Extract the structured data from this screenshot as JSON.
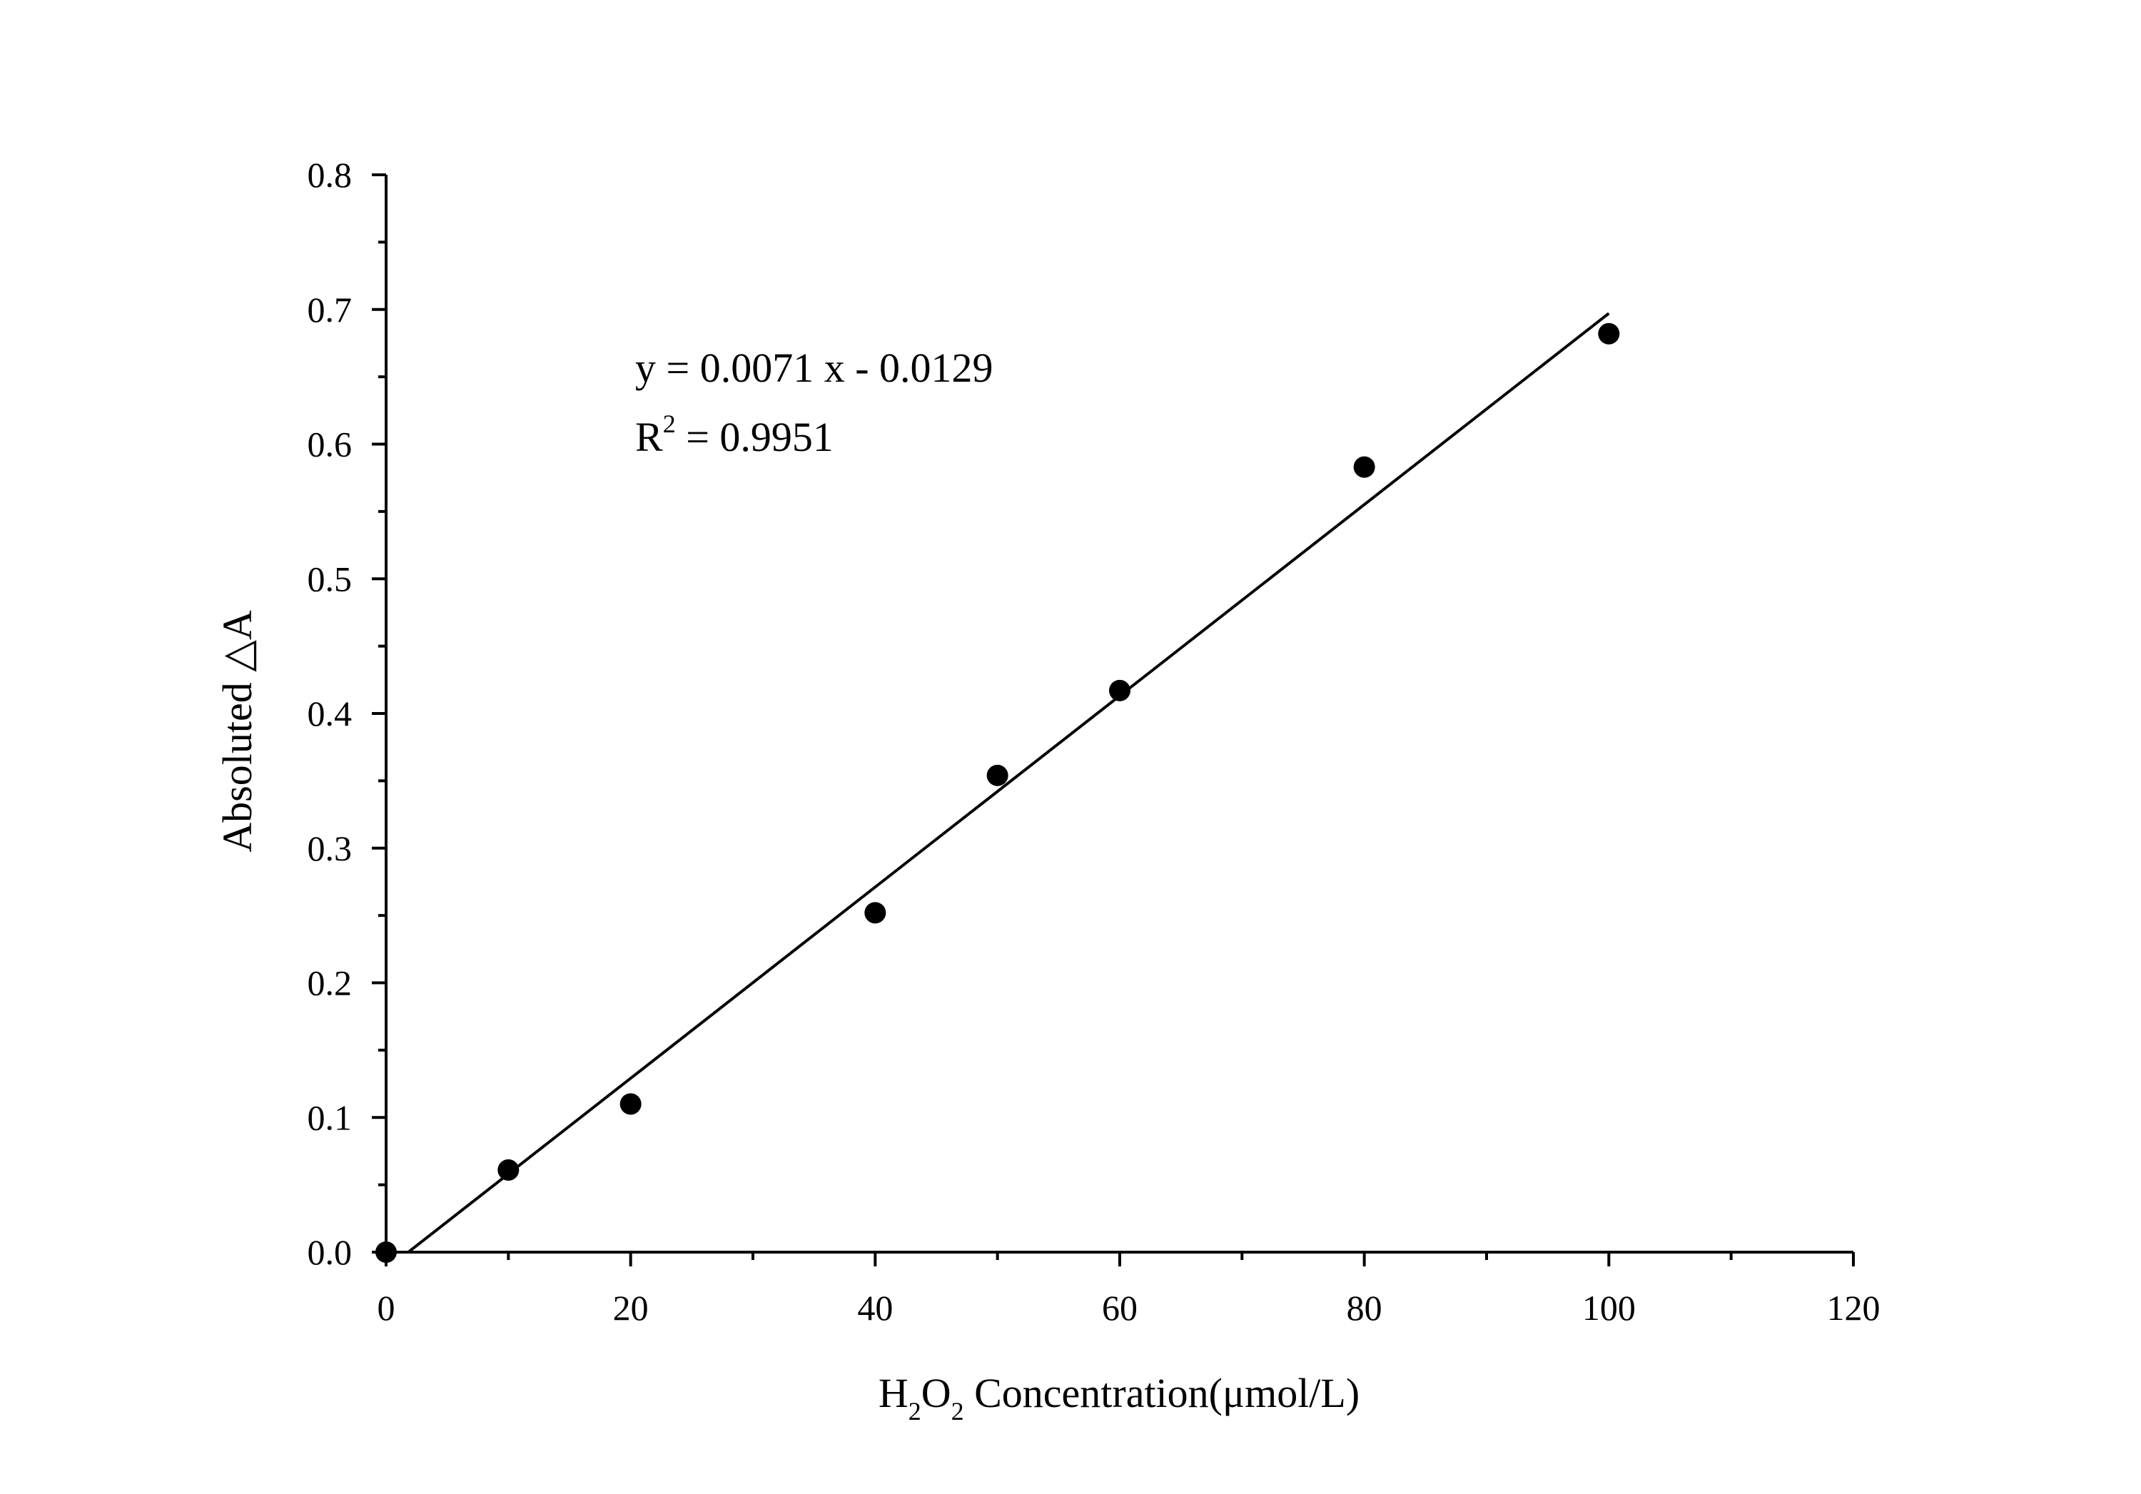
{
  "chart_data": {
    "type": "scatter",
    "xlabel": {
      "prefix": "H",
      "sub1": "2",
      "middle": "O",
      "sub2": "2",
      "suffix": " Concentration(μmol/L)"
    },
    "ylabel": "Absoluted △A",
    "xlim": [
      0,
      120
    ],
    "ylim": [
      0,
      0.8
    ],
    "xticks": [
      0,
      20,
      40,
      60,
      80,
      100,
      120
    ],
    "xtick_labels": [
      "0",
      "20",
      "40",
      "60",
      "80",
      "100",
      "120"
    ],
    "yticks": [
      0,
      0.1,
      0.2,
      0.3,
      0.4,
      0.5,
      0.6,
      0.7,
      0.8
    ],
    "ytick_labels": [
      "0.0",
      "0.1",
      "0.2",
      "0.3",
      "0.4",
      "0.5",
      "0.6",
      "0.7",
      "0.8"
    ],
    "grid": false,
    "legend": "none",
    "points": {
      "x": [
        0,
        10,
        20,
        40,
        50,
        60,
        80,
        100
      ],
      "y": [
        0.0,
        0.061,
        0.11,
        0.252,
        0.354,
        0.417,
        0.583,
        0.682
      ]
    },
    "fit": {
      "slope": 0.0071,
      "intercept": -0.0129,
      "x_range": [
        1.82,
        100
      ]
    },
    "annotations": {
      "equation": "y = 0.0071 x - 0.0129",
      "r2_base": "R",
      "r2_sup": "2",
      "r2_value": " = 0.9951"
    },
    "colors": {
      "marker": "#000000",
      "line": "#000000",
      "axis": "#000000"
    }
  }
}
